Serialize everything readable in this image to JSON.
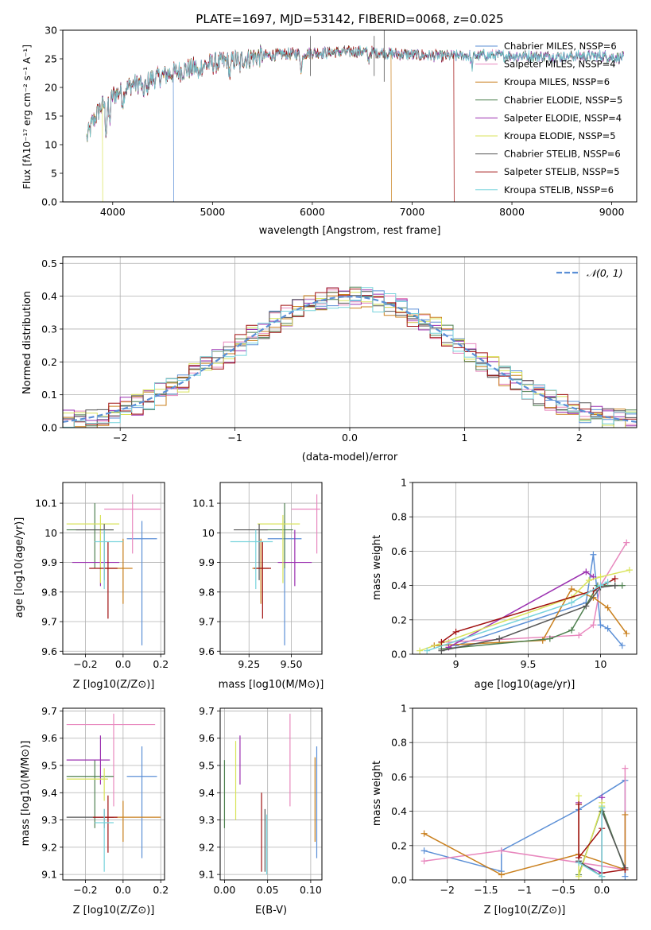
{
  "colors": [
    "#5b8fd6",
    "#e888be",
    "#c97f1c",
    "#4f8050",
    "#9b30b0",
    "#d9e35a",
    "#555555",
    "#a01010",
    "#77d3dc"
  ],
  "chart_data": [
    {
      "id": "spectrum",
      "type": "line",
      "title": "PLATE=1697, MJD=53142, FIBERID=0068, z=0.025",
      "xlabel": "wavelength [Angstrom, rest frame]",
      "ylabel": "Flux [fλ10⁻¹⁷ erg cm⁻² s⁻¹ A⁻¹]",
      "xlim": [
        3500,
        9250
      ],
      "ylim": [
        0,
        30
      ],
      "xticks": [
        4000,
        5000,
        6000,
        7000,
        8000,
        9000
      ],
      "yticks": [
        0,
        5,
        10,
        15,
        20,
        25,
        30
      ],
      "legend_position": "upper-right",
      "legend": [
        "Chabrier MILES, NSSP=6",
        "Salpeter MILES, NSSP=4",
        "Kroupa MILES, NSSP=6",
        "Chabrier ELODIE, NSSP=5",
        "Salpeter ELODIE, NSSP=4",
        "Kroupa ELODIE, NSSP=5",
        "Chabrier STELIB, NSSP=6",
        "Salpeter STELIB, NSSP=5",
        "Kroupa STELIB, NSSP=6"
      ],
      "continuum": {
        "x": [
          3740,
          3800,
          3900,
          4000,
          4100,
          4200,
          4300,
          4500,
          4700,
          4900,
          5100,
          5300,
          5500,
          5700,
          6000,
          6300,
          6500,
          6700,
          6900,
          7100,
          7300,
          7500,
          7700,
          7900,
          8100,
          8300,
          8500,
          8700,
          8900,
          9000,
          9100
        ],
        "y": [
          11,
          14,
          17,
          18.5,
          19.5,
          20.5,
          21,
          22,
          23,
          23.8,
          24.5,
          25,
          25.5,
          25.8,
          26,
          26.2,
          26.3,
          26,
          25.8,
          25.6,
          25.5,
          25.5,
          25.6,
          25.6,
          25.5,
          25.4,
          25.4,
          25.5,
          25.5,
          25.3,
          25.2
        ]
      },
      "truncations": [
        {
          "series": 0,
          "x": 4610
        },
        {
          "series": 5,
          "x": 3900
        },
        {
          "series": 2,
          "x": 6790
        },
        {
          "series": 7,
          "x": 7420
        }
      ]
    },
    {
      "id": "residuals",
      "type": "step",
      "xlabel": "(data-model)/error",
      "ylabel": "Normed distribution",
      "xlim": [
        -2.5,
        2.5
      ],
      "ylim": [
        0,
        0.52
      ],
      "xticks": [
        -2,
        -1,
        0,
        1,
        2
      ],
      "yticks": [
        0.0,
        0.1,
        0.2,
        0.3,
        0.4,
        0.5
      ],
      "legend": [
        "𝒩(0, 1)"
      ],
      "legend_position": "upper-right",
      "bin_width": 0.1
    },
    {
      "id": "age-vs-Z",
      "type": "errorbar",
      "xlabel": "Z [log10(Z/Z⊙)]",
      "ylabel": "age  [log10(age/yr)]",
      "xlim": [
        -0.32,
        0.22
      ],
      "ylim": [
        9.59,
        10.17
      ],
      "xticks": [
        -0.2,
        0.0,
        0.2
      ],
      "yticks": [
        9.6,
        9.7,
        9.8,
        9.9,
        10.0,
        10.1
      ],
      "points": [
        {
          "x": 0.1,
          "xerr": [
            0.08,
            0.08
          ],
          "y": 9.98,
          "yerr": [
            0.36,
            0.06
          ]
        },
        {
          "x": 0.05,
          "xerr": [
            0.15,
            0.15
          ],
          "y": 10.08,
          "yerr": [
            0.15,
            0.05
          ]
        },
        {
          "x": 0.0,
          "xerr": [
            0.1,
            0.05
          ],
          "y": 9.88,
          "yerr": [
            0.12,
            0.1
          ]
        },
        {
          "x": -0.15,
          "xerr": [
            0.15,
            0.1
          ],
          "y": 10.01,
          "yerr": [
            0.13,
            0.09
          ]
        },
        {
          "x": -0.12,
          "xerr": [
            0.15,
            0.1
          ],
          "y": 9.9,
          "yerr": [
            0.08,
            0.11
          ]
        },
        {
          "x": -0.12,
          "xerr": [
            0.18,
            0.1
          ],
          "y": 10.03,
          "yerr": [
            0.2,
            0.03
          ]
        },
        {
          "x": -0.1,
          "xerr": [
            0.15,
            0.05
          ],
          "y": 10.01,
          "yerr": [
            0.17,
            0.02
          ]
        },
        {
          "x": -0.08,
          "xerr": [
            0.1,
            0.05
          ],
          "y": 9.88,
          "yerr": [
            0.17,
            0.09
          ]
        },
        {
          "x": -0.1,
          "xerr": [
            0.05,
            0.1
          ],
          "y": 9.97,
          "yerr": [
            0.16,
            0.04
          ]
        }
      ]
    },
    {
      "id": "age-vs-mass",
      "type": "errorbar",
      "xlabel": "mass [log10(M/M⊙)]",
      "ylabel": "",
      "xlim": [
        9.08,
        9.68
      ],
      "ylim": [
        9.59,
        10.17
      ],
      "xticks": [
        9.25,
        9.5
      ],
      "xticklabels": [
        "9.25",
        "9.50"
      ],
      "yticks": [
        9.6,
        9.7,
        9.8,
        9.9,
        10.0,
        10.1
      ],
      "points": [
        {
          "x": 9.46,
          "xerr": [
            0.1,
            0.1
          ],
          "y": 9.98,
          "yerr": [
            0.36,
            0.06
          ]
        },
        {
          "x": 9.65,
          "xerr": [
            0.15,
            0.02
          ],
          "y": 10.08,
          "yerr": [
            0.15,
            0.05
          ]
        },
        {
          "x": 9.32,
          "xerr": [
            0.05,
            0.05
          ],
          "y": 9.88,
          "yerr": [
            0.12,
            0.1
          ]
        },
        {
          "x": 9.46,
          "xerr": [
            0.15,
            0.05
          ],
          "y": 10.01,
          "yerr": [
            0.13,
            0.09
          ]
        },
        {
          "x": 9.52,
          "xerr": [
            0.1,
            0.1
          ],
          "y": 9.9,
          "yerr": [
            0.08,
            0.11
          ]
        },
        {
          "x": 9.45,
          "xerr": [
            0.15,
            0.1
          ],
          "y": 10.03,
          "yerr": [
            0.2,
            0.03
          ]
        },
        {
          "x": 9.31,
          "xerr": [
            0.15,
            0.05
          ],
          "y": 10.01,
          "yerr": [
            0.17,
            0.02
          ]
        },
        {
          "x": 9.33,
          "xerr": [
            0.05,
            0.05
          ],
          "y": 9.88,
          "yerr": [
            0.17,
            0.09
          ]
        },
        {
          "x": 9.29,
          "xerr": [
            0.15,
            0.1
          ],
          "y": 9.97,
          "yerr": [
            0.16,
            0.04
          ]
        }
      ]
    },
    {
      "id": "weight-vs-age",
      "type": "line",
      "xlabel": "age  [log10(age/yr)]",
      "ylabel": "mass weight",
      "xlim": [
        8.7,
        10.25
      ],
      "ylim": [
        0,
        1
      ],
      "xticks": [
        9.0,
        9.5,
        10.0
      ],
      "yticks": [
        0.0,
        0.2,
        0.4,
        0.6,
        0.8,
        1.0
      ],
      "series": [
        {
          "x": [
            9.0,
            9.9,
            9.95,
            10.0,
            10.05,
            10.15
          ],
          "y": [
            0.05,
            0.3,
            0.58,
            0.17,
            0.15,
            0.05
          ]
        },
        {
          "x": [
            8.95,
            9.85,
            9.95,
            10.0,
            10.18
          ],
          "y": [
            0.07,
            0.11,
            0.17,
            0.4,
            0.65
          ]
        },
        {
          "x": [
            8.85,
            9.6,
            9.8,
            9.95,
            10.05,
            10.18
          ],
          "y": [
            0.05,
            0.08,
            0.38,
            0.33,
            0.27,
            0.12
          ]
        },
        {
          "x": [
            8.9,
            9.65,
            9.8,
            9.98,
            10.1,
            10.15
          ],
          "y": [
            0.03,
            0.09,
            0.14,
            0.4,
            0.4,
            0.4
          ]
        },
        {
          "x": [
            8.95,
            9.9,
            9.95
          ],
          "y": [
            0.04,
            0.48,
            0.45
          ]
        },
        {
          "x": [
            8.75,
            9.8,
            9.92,
            10.0,
            10.2
          ],
          "y": [
            0.02,
            0.33,
            0.43,
            0.45,
            0.49
          ]
        },
        {
          "x": [
            8.9,
            9.3,
            9.9,
            10.0,
            10.1
          ],
          "y": [
            0.02,
            0.09,
            0.28,
            0.39,
            0.4
          ]
        },
        {
          "x": [
            8.9,
            9.0,
            9.95,
            10.1
          ],
          "y": [
            0.07,
            0.13,
            0.37,
            0.44
          ]
        },
        {
          "x": [
            8.8,
            9.8,
            10.0,
            10.05
          ],
          "y": [
            0.02,
            0.3,
            0.4,
            0.42
          ]
        }
      ]
    },
    {
      "id": "mass-vs-Z",
      "type": "errorbar",
      "xlabel": "Z [log10(Z/Z⊙)]",
      "ylabel": "mass [log10(M/M⊙)]",
      "xlim": [
        -0.32,
        0.22
      ],
      "ylim": [
        9.08,
        9.71
      ],
      "xticks": [
        -0.2,
        0.0,
        0.2
      ],
      "yticks": [
        9.1,
        9.2,
        9.3,
        9.4,
        9.5,
        9.6,
        9.7
      ],
      "points": [
        {
          "x": 0.1,
          "xerr": [
            0.08,
            0.08
          ],
          "y": 9.46,
          "yerr": [
            0.3,
            0.11
          ]
        },
        {
          "x": -0.05,
          "xerr": [
            0.25,
            0.22
          ],
          "y": 9.65,
          "yerr": [
            0.3,
            0.04
          ]
        },
        {
          "x": 0.0,
          "xerr": [
            0.1,
            0.2
          ],
          "y": 9.31,
          "yerr": [
            0.09,
            0.06
          ]
        },
        {
          "x": -0.15,
          "xerr": [
            0.15,
            0.1
          ],
          "y": 9.46,
          "yerr": [
            0.19,
            0.06
          ]
        },
        {
          "x": -0.12,
          "xerr": [
            0.18,
            0.05
          ],
          "y": 9.52,
          "yerr": [
            0.09,
            0.09
          ]
        },
        {
          "x": -0.1,
          "xerr": [
            0.2,
            0.02
          ],
          "y": 9.45,
          "yerr": [
            0.08,
            0.04
          ]
        },
        {
          "x": -0.1,
          "xerr": [
            0.2,
            0.05
          ],
          "y": 9.31,
          "yerr": [
            0.04,
            0.03
          ]
        },
        {
          "x": -0.08,
          "xerr": [
            0.08,
            0.05
          ],
          "y": 9.31,
          "yerr": [
            0.13,
            0.08
          ]
        },
        {
          "x": -0.1,
          "xerr": [
            0.05,
            0.05
          ],
          "y": 9.29,
          "yerr": [
            0.18,
            0.05
          ]
        }
      ]
    },
    {
      "id": "mass-vs-ebv",
      "type": "errorbar",
      "xlabel": "E(B-V)",
      "ylabel": "",
      "xlim": [
        -0.005,
        0.113
      ],
      "ylim": [
        9.08,
        9.71
      ],
      "xticks": [
        0.0,
        0.05,
        0.1
      ],
      "xticklabels": [
        "0.00",
        "0.05",
        "0.10"
      ],
      "yticks": [
        9.1,
        9.2,
        9.3,
        9.4,
        9.5,
        9.6,
        9.7
      ],
      "points": [
        {
          "x": 0.107,
          "y": 9.46,
          "yerr": [
            0.3,
            0.11
          ]
        },
        {
          "x": 0.076,
          "y": 9.65,
          "yerr": [
            0.3,
            0.04
          ]
        },
        {
          "x": 0.105,
          "y": 9.31,
          "yerr": [
            0.09,
            0.22
          ]
        },
        {
          "x": 0.0,
          "y": 9.46,
          "yerr": [
            0.19,
            0.06
          ]
        },
        {
          "x": 0.018,
          "y": 9.52,
          "yerr": [
            0.09,
            0.09
          ]
        },
        {
          "x": 0.013,
          "y": 9.45,
          "yerr": [
            0.15,
            0.14
          ]
        },
        {
          "x": 0.047,
          "y": 9.31,
          "yerr": [
            0.2,
            0.03
          ]
        },
        {
          "x": 0.043,
          "y": 9.31,
          "yerr": [
            0.2,
            0.09
          ]
        },
        {
          "x": 0.049,
          "y": 9.2,
          "yerr": [
            0.1,
            0.12
          ]
        }
      ]
    },
    {
      "id": "weight-vs-Z",
      "type": "line",
      "xlabel": "Z [log10(Z/Z⊙)]",
      "ylabel": "mass weight",
      "xlim": [
        -2.45,
        0.45
      ],
      "ylim": [
        0,
        1
      ],
      "xticks": [
        -2.0,
        -1.5,
        -1.0,
        -0.5,
        0.0
      ],
      "yticks": [
        0.0,
        0.2,
        0.4,
        0.6,
        0.8,
        1.0
      ],
      "series": [
        {
          "x": [
            -2.3,
            -1.3,
            -1.3,
            -0.3,
            0.3,
            0.3
          ],
          "y": [
            0.17,
            0.05,
            0.17,
            0.41,
            0.58,
            0.02
          ]
        },
        {
          "x": [
            -2.3,
            -1.3,
            0.3,
            0.3
          ],
          "y": [
            0.11,
            0.17,
            0.06,
            0.65
          ]
        },
        {
          "x": [
            -2.3,
            -1.3,
            -0.3,
            0.3,
            0.3
          ],
          "y": [
            0.27,
            0.03,
            0.15,
            0.06,
            0.38
          ]
        },
        {
          "x": [
            -0.3,
            0.0,
            0.3
          ],
          "y": [
            0.03,
            0.42,
            0.06
          ]
        },
        {
          "x": [
            -0.3,
            -0.3,
            0.0,
            0.0
          ],
          "y": [
            0.45,
            0.1,
            0.04,
            0.48
          ]
        },
        {
          "x": [
            -0.3,
            -0.3,
            0.0,
            0.0
          ],
          "y": [
            0.49,
            0.02,
            0.43,
            0.45
          ]
        },
        {
          "x": [
            -0.3,
            0.0,
            0.0,
            0.3
          ],
          "y": [
            0.11,
            0.02,
            0.4,
            0.07
          ]
        },
        {
          "x": [
            -0.3,
            -0.3,
            0.0,
            0.0,
            0.3
          ],
          "y": [
            0.44,
            0.13,
            0.3,
            0.04,
            0.06
          ]
        },
        {
          "x": [
            -0.3,
            0.0,
            0.0
          ],
          "y": [
            0.1,
            0.02,
            0.42
          ]
        }
      ]
    }
  ]
}
